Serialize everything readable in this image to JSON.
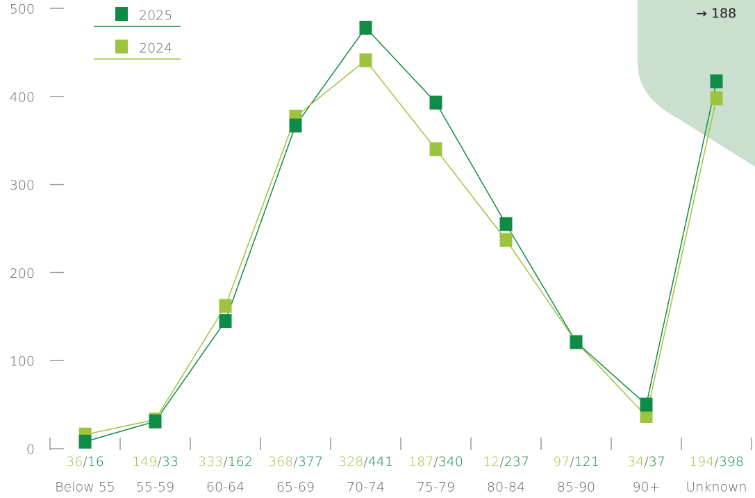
{
  "chart_data": {
    "type": "line",
    "categories": [
      "Below 55",
      "55-59",
      "60-64",
      "65-69",
      "70-74",
      "75-79",
      "80-84",
      "85-90",
      "90+",
      "Unknown"
    ],
    "series": [
      {
        "name": "2025",
        "color": "#0e8c47",
        "values": [
          8,
          31,
          145,
          367,
          478,
          393,
          255,
          121,
          50,
          417
        ]
      },
      {
        "name": "2024",
        "color": "#9ec43f",
        "values": [
          16,
          33,
          162,
          377,
          441,
          340,
          237,
          121,
          37,
          398
        ]
      }
    ],
    "count_labels": [
      [
        "36",
        "16"
      ],
      [
        "149",
        "33"
      ],
      [
        "333",
        "162"
      ],
      [
        "368",
        "377"
      ],
      [
        "328",
        "441"
      ],
      [
        "187",
        "340"
      ],
      [
        "12",
        "237"
      ],
      [
        "97",
        "121"
      ],
      [
        "34",
        "37"
      ],
      [
        "194",
        "398"
      ]
    ],
    "count_label_separator": "/",
    "callout": "→ 188",
    "ylim": [
      0,
      500
    ],
    "yticks": [
      0,
      100,
      200,
      300,
      400,
      500
    ],
    "legend": "upper left"
  }
}
